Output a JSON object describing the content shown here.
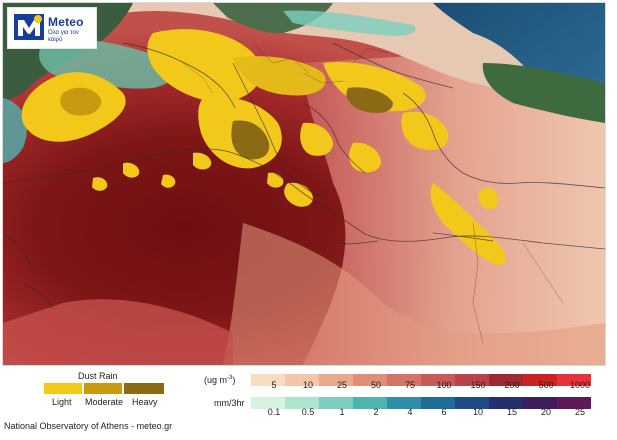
{
  "logo": {
    "brand": "Meteo",
    "tagline": "Όλα για τον καιρό"
  },
  "colors": {
    "dust_light": "#f2c81a",
    "dust_moderate": "#c89a10",
    "dust_heavy": "#8a6a14",
    "sea_deep": "#1d4f78",
    "land_dark": "#3c5a3a",
    "dust_core": "#7a1212"
  },
  "legend": {
    "dust_rain": {
      "title": "Dust Rain",
      "labels": [
        "Light",
        "Moderate",
        "Heavy"
      ]
    },
    "concentration": {
      "unit_main": "(ug m",
      "unit_sup": "-3",
      "unit_close": ")",
      "ticks": [
        "5",
        "10",
        "25",
        "50",
        "75",
        "100",
        "150",
        "200",
        "500",
        "1000"
      ],
      "colors": [
        "#f7dcc0",
        "#f2c6a6",
        "#e9aa8b",
        "#e08f77",
        "#d47468",
        "#c65a58",
        "#b8444a",
        "#a02a32",
        "#cc2222",
        "#e8323a"
      ]
    },
    "rain_rate": {
      "unit": "mm/3hr",
      "ticks": [
        "0.1",
        "0.5",
        "1",
        "2",
        "4",
        "6",
        "10",
        "15",
        "20",
        "25"
      ],
      "colors": [
        "#d8f2e2",
        "#aee4cf",
        "#7ccfc0",
        "#4fb3b0",
        "#2f8fa8",
        "#1f6c99",
        "#1f4b86",
        "#262f6e",
        "#3d1d5c",
        "#5e1a56"
      ]
    }
  },
  "footer": {
    "credit": "National Observatory of Athens - meteo.gr"
  }
}
